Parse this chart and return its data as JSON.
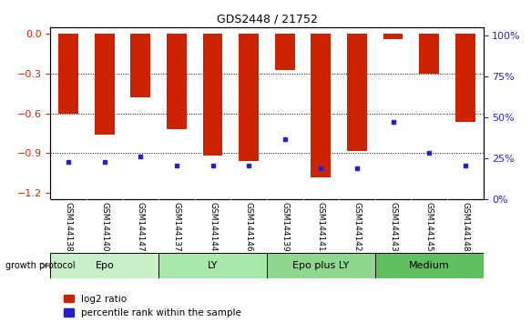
{
  "title": "GDS2448 / 21752",
  "samples": [
    "GSM144138",
    "GSM144140",
    "GSM144147",
    "GSM144137",
    "GSM144144",
    "GSM144146",
    "GSM144139",
    "GSM144141",
    "GSM144142",
    "GSM144143",
    "GSM144145",
    "GSM144148"
  ],
  "log2_ratio": [
    -0.6,
    -0.76,
    -0.48,
    -0.72,
    -0.92,
    -0.96,
    -0.27,
    -1.08,
    -0.88,
    -0.04,
    -0.3,
    -0.66
  ],
  "percentile_rank": [
    22,
    22,
    25,
    20,
    20,
    20,
    35,
    18,
    18,
    45,
    27,
    20
  ],
  "groups": [
    {
      "label": "Epo",
      "start": 0,
      "end": 3,
      "color": "#c8f0c8"
    },
    {
      "label": "LY",
      "start": 3,
      "end": 6,
      "color": "#a8e8a8"
    },
    {
      "label": "Epo plus LY",
      "start": 6,
      "end": 9,
      "color": "#90d890"
    },
    {
      "label": "Medium",
      "start": 9,
      "end": 12,
      "color": "#60c060"
    }
  ],
  "bar_color": "#cc2200",
  "blue_color": "#2222cc",
  "ylim_left": [
    -1.25,
    0.05
  ],
  "ylim_right": [
    0,
    105
  ],
  "yticks_left": [
    0,
    -0.3,
    -0.6,
    -0.9,
    -1.2
  ],
  "yticks_right": [
    0,
    25,
    50,
    75,
    100
  ],
  "bar_width": 0.55,
  "blue_marker_size": 3.5,
  "background_color": "#ffffff",
  "axis_color_left": "#cc2200",
  "axis_color_right": "#2222cc"
}
